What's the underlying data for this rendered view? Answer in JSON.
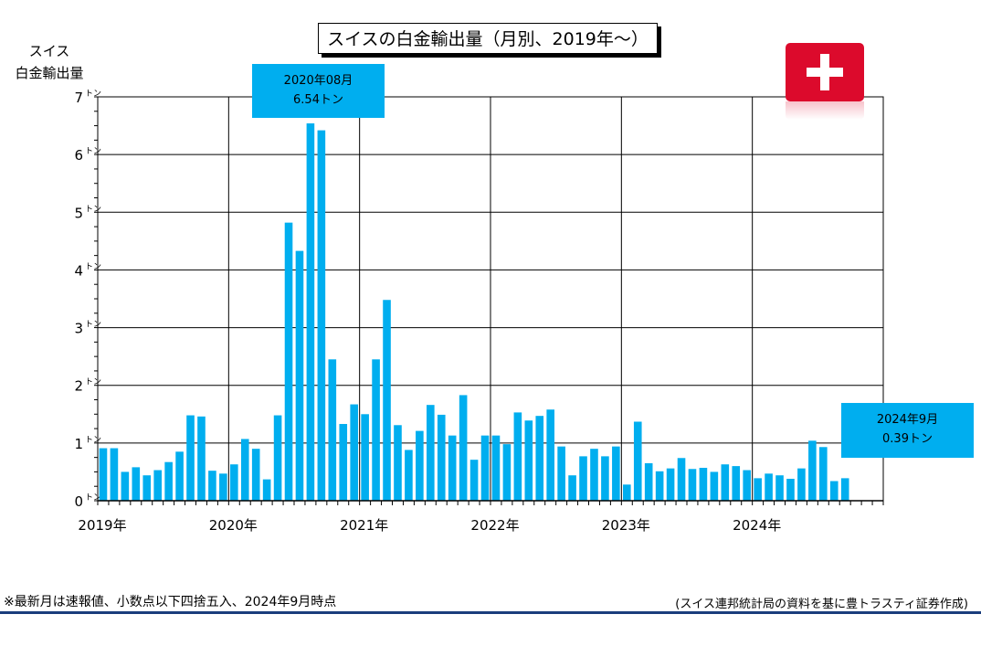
{
  "title": "スイスの白金輸出量（月別、2019年～）",
  "ylabel_line1": "スイス",
  "ylabel_line2": "白金輸出量",
  "callout_peak": {
    "line1": "2020年08月",
    "line2": "6.54トン"
  },
  "callout_latest": {
    "line1": "2024年9月",
    "line2": "0.39トン"
  },
  "footnote": "※最新月は速報値、小数点以下四捨五入、2024年9月時点",
  "source": "(スイス連邦統計局の資料を基に豊トラスティ証券作成)",
  "flag": {
    "name": "swiss-flag",
    "color": "#dc0a2c"
  },
  "chart_data": {
    "type": "bar",
    "title": "スイスの白金輸出量（月別、2019年～）",
    "ylabel": "スイス 白金輸出量",
    "unit": "トン",
    "ylim": [
      0,
      7
    ],
    "yticks": [
      0,
      1,
      2,
      3,
      4,
      5,
      6,
      7
    ],
    "ytick_labels": [
      "0",
      "1",
      "2",
      "3",
      "4",
      "5",
      "6",
      "7"
    ],
    "ytick_unit": "トン",
    "xtick_labels": [
      "2019年",
      "2020年",
      "2021年",
      "2022年",
      "2023年",
      "2024年"
    ],
    "bar_color": "#00aeef",
    "grid": true,
    "start": "2019-01",
    "end_axis": "2024-12",
    "x": [
      "2019-01",
      "2019-02",
      "2019-03",
      "2019-04",
      "2019-05",
      "2019-06",
      "2019-07",
      "2019-08",
      "2019-09",
      "2019-10",
      "2019-11",
      "2019-12",
      "2020-01",
      "2020-02",
      "2020-03",
      "2020-04",
      "2020-05",
      "2020-06",
      "2020-07",
      "2020-08",
      "2020-09",
      "2020-10",
      "2020-11",
      "2020-12",
      "2021-01",
      "2021-02",
      "2021-03",
      "2021-04",
      "2021-05",
      "2021-06",
      "2021-07",
      "2021-08",
      "2021-09",
      "2021-10",
      "2021-11",
      "2021-12",
      "2022-01",
      "2022-02",
      "2022-03",
      "2022-04",
      "2022-05",
      "2022-06",
      "2022-07",
      "2022-08",
      "2022-09",
      "2022-10",
      "2022-11",
      "2022-12",
      "2023-01",
      "2023-02",
      "2023-03",
      "2023-04",
      "2023-05",
      "2023-06",
      "2023-07",
      "2023-08",
      "2023-09",
      "2023-10",
      "2023-11",
      "2023-12",
      "2024-01",
      "2024-02",
      "2024-03",
      "2024-04",
      "2024-05",
      "2024-06",
      "2024-07",
      "2024-08",
      "2024-09"
    ],
    "values": [
      0.91,
      0.91,
      0.5,
      0.58,
      0.44,
      0.53,
      0.67,
      0.85,
      1.48,
      1.46,
      0.52,
      0.47,
      0.63,
      1.07,
      0.9,
      0.37,
      1.48,
      4.82,
      4.33,
      6.54,
      6.42,
      2.45,
      1.33,
      1.67,
      1.5,
      2.45,
      3.48,
      1.31,
      0.88,
      1.21,
      1.66,
      1.49,
      1.13,
      1.83,
      0.71,
      1.13,
      1.13,
      0.98,
      1.53,
      1.39,
      1.47,
      1.58,
      0.94,
      0.44,
      0.77,
      0.9,
      0.77,
      0.94,
      0.28,
      1.37,
      0.65,
      0.51,
      0.56,
      0.74,
      0.55,
      0.57,
      0.5,
      0.63,
      0.6,
      0.53,
      0.39,
      0.47,
      0.44,
      0.38,
      0.56,
      1.04,
      0.93,
      0.34,
      0.39
    ]
  }
}
